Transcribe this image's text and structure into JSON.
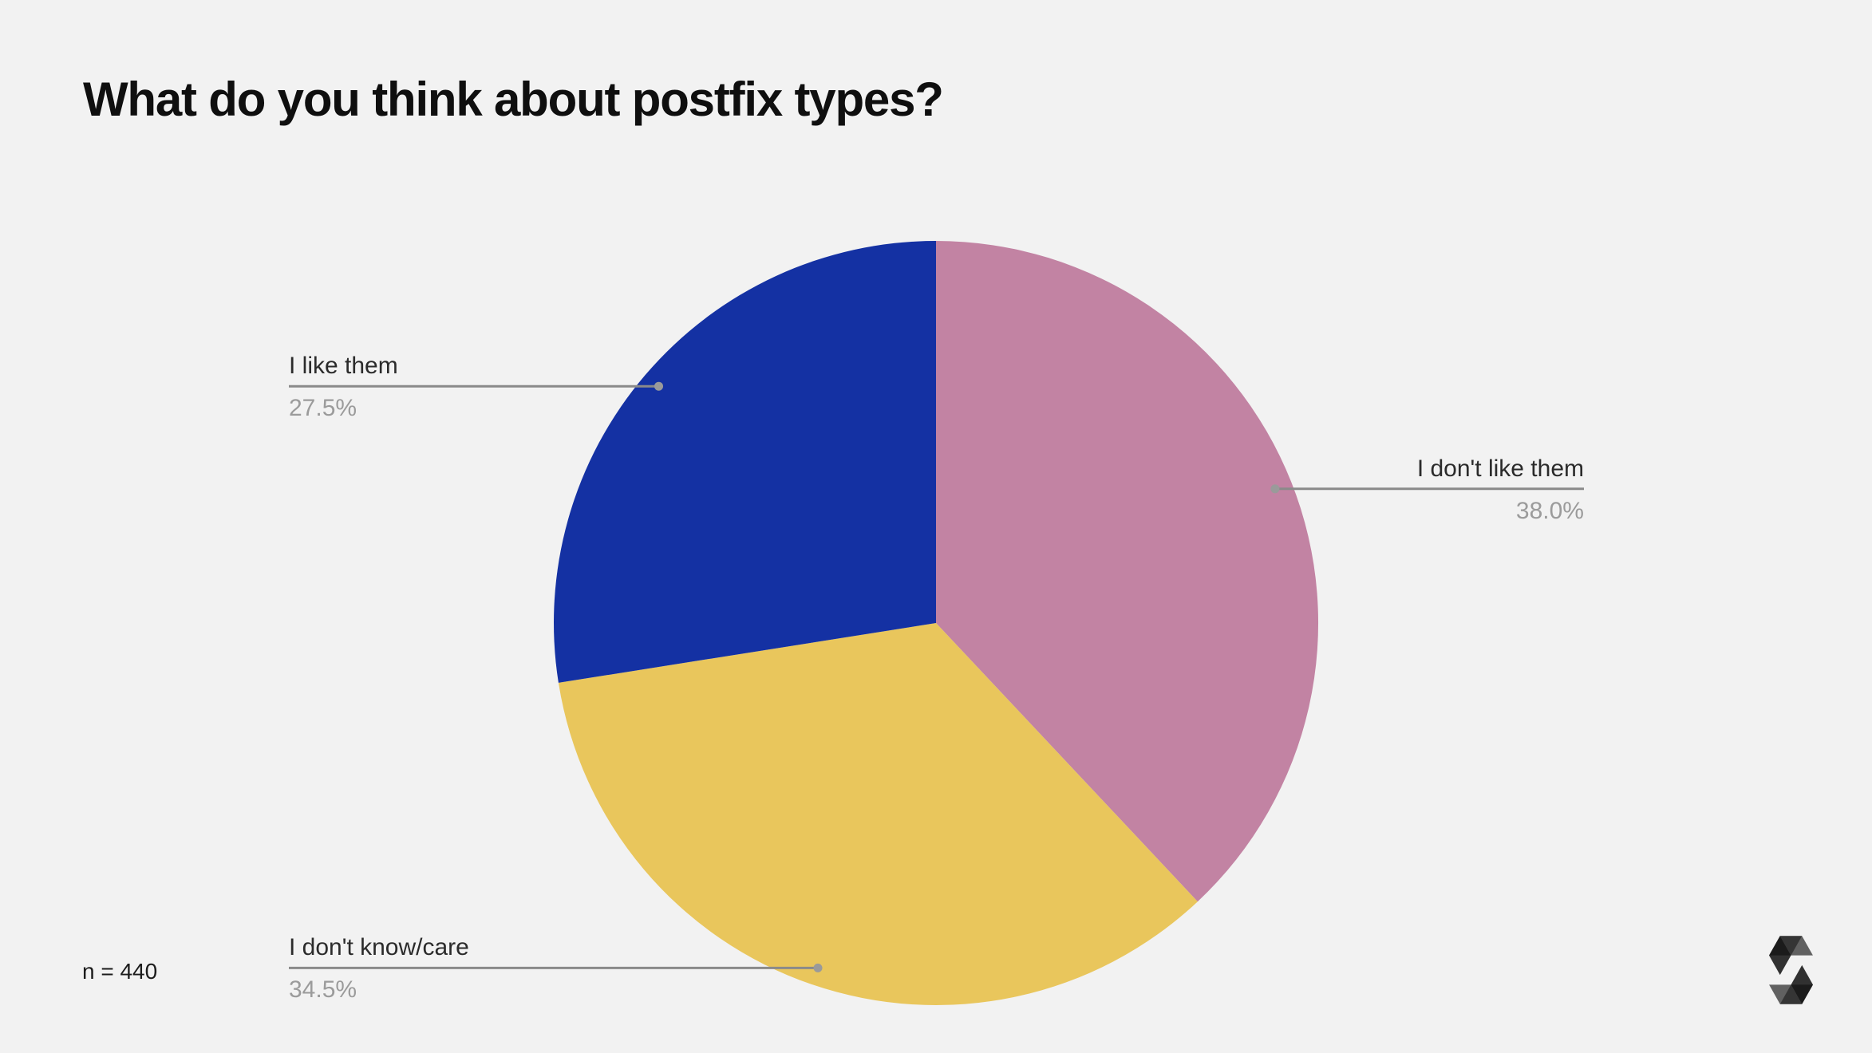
{
  "chart_data": {
    "type": "pie",
    "title": "What do you think about postfix types?",
    "n": 440,
    "n_label": "n = 440",
    "start_angle_deg": 0,
    "direction": "clockwise",
    "legend_position": "callout-labels",
    "slices": [
      {
        "label": "I don't like them",
        "value_pct": 38.0,
        "pct_label": "38.0%",
        "color": "#c283a3",
        "callout_side": "right"
      },
      {
        "label": "I don't know/care",
        "value_pct": 34.5,
        "pct_label": "34.5%",
        "color": "#e9c65c",
        "callout_side": "left"
      },
      {
        "label": "I like them",
        "value_pct": 27.5,
        "pct_label": "27.5%",
        "color": "#1431a3",
        "callout_side": "left"
      }
    ]
  },
  "colors": {
    "background": "#f2f2f2",
    "title_text": "#0f0f0f",
    "label_text": "#2b2b2b",
    "pct_text": "#9b9b9b",
    "callout_line": "#8a8a8a",
    "callout_dot": "#9a9a9a",
    "logo": "#000000"
  },
  "footer": {
    "logo": "solidity-logo"
  }
}
